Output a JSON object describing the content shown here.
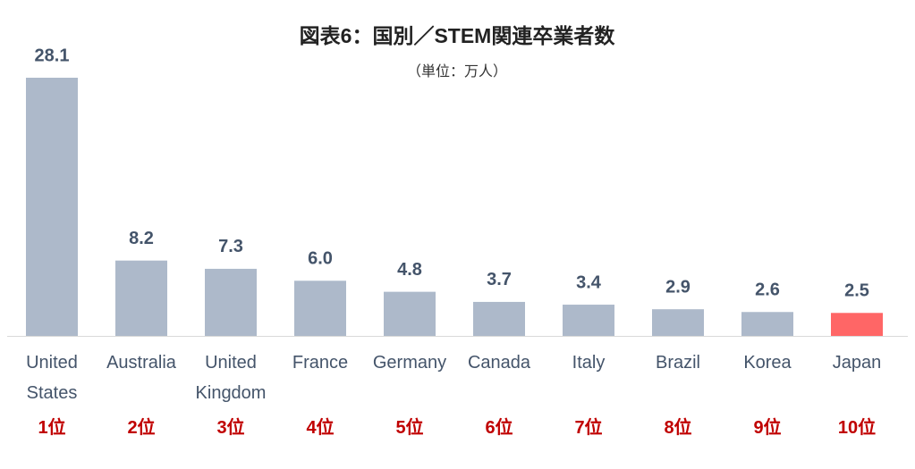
{
  "chart_data": {
    "type": "bar",
    "title": "図表6：国別／STEM関連卒業者数",
    "subtitle": "（単位：万人）",
    "categories": [
      "United States",
      "Australia",
      "United Kingdom",
      "France",
      "Germany",
      "Canada",
      "Italy",
      "Brazil",
      "Korea",
      "Japan"
    ],
    "values": [
      28.1,
      8.2,
      7.3,
      6.0,
      4.8,
      3.7,
      3.4,
      2.9,
      2.6,
      2.5
    ],
    "value_labels": [
      "28.1",
      "8.2",
      "7.3",
      "6.0",
      "4.8",
      "3.7",
      "3.4",
      "2.9",
      "2.6",
      "2.5"
    ],
    "colors": [
      "#adb9ca",
      "#adb9ca",
      "#adb9ca",
      "#adb9ca",
      "#adb9ca",
      "#adb9ca",
      "#adb9ca",
      "#adb9ca",
      "#adb9ca",
      "#ff6666"
    ],
    "rank_labels": [
      "1位",
      "2位",
      "3位",
      "4位",
      "5位",
      "6位",
      "7位",
      "8位",
      "9位",
      "10位"
    ]
  }
}
